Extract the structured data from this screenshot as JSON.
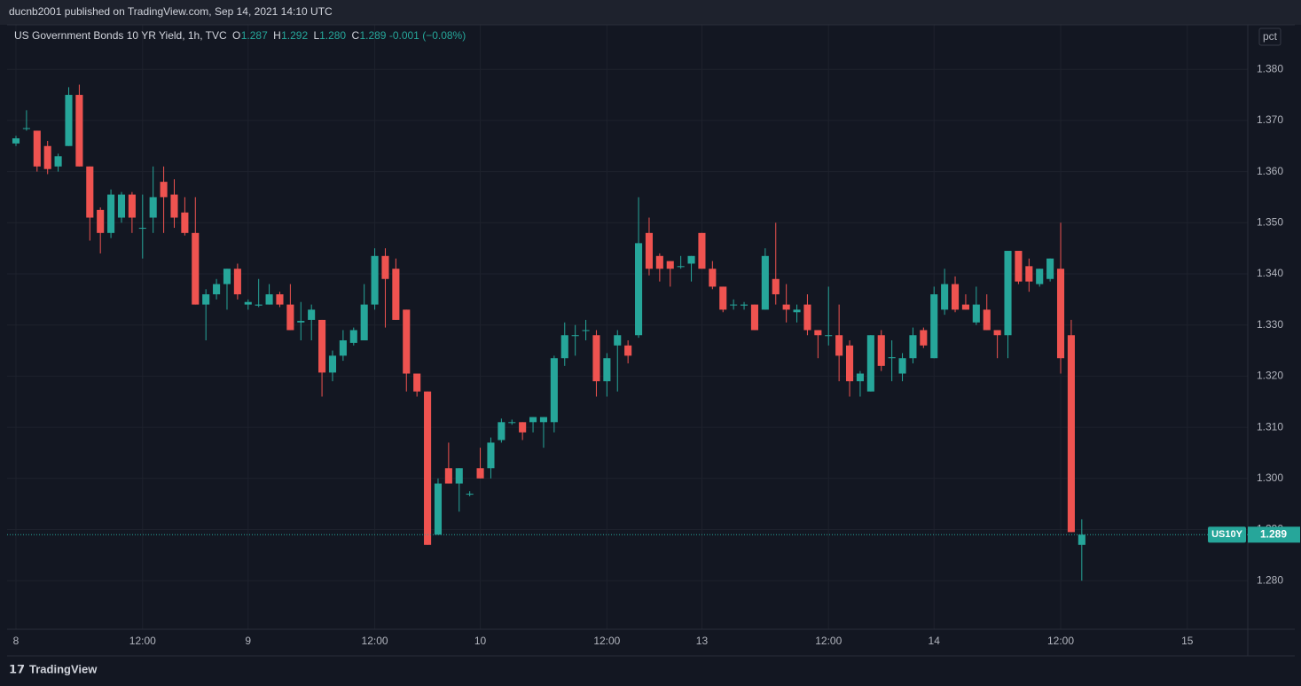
{
  "header": {
    "title": "ducnb2001 published on TradingView.com, Sep 14, 2021 14:10 UTC"
  },
  "chart_data": {
    "type": "candlestick",
    "legend_title": "US Government Bonds 10 YR Yield, 1h, TVC",
    "ohlc_legend": [
      {
        "key": "O",
        "value": "1.287"
      },
      {
        "key": "H",
        "value": "1.292"
      },
      {
        "key": "L",
        "value": "1.280"
      },
      {
        "key": "C",
        "value": "1.289"
      }
    ],
    "change": "-0.001 (−0.08%)",
    "scale_button": "pct",
    "symbol_tag": "US10Y",
    "up_color": "#26a69a",
    "down_color": "#ef5350",
    "open": [
      1.3655,
      1.3685,
      1.368,
      1.365,
      1.361,
      1.365,
      1.375,
      1.361,
      1.3525,
      1.348,
      1.351,
      1.3555,
      1.349,
      1.351,
      1.358,
      1.3555,
      1.352,
      1.348,
      1.334,
      1.336,
      1.338,
      1.341,
      1.334,
      1.3338,
      1.334,
      1.336,
      1.334,
      1.3305,
      1.331,
      1.331,
      1.3207,
      1.324,
      1.3265,
      1.327,
      1.334,
      1.3435,
      1.341,
      1.333,
      1.3205,
      1.317,
      1.289,
      1.302,
      1.299,
      1.297,
      1.302,
      1.302,
      1.3075,
      1.311,
      1.311,
      1.311,
      1.311,
      1.311,
      1.3235,
      1.328,
      1.329,
      1.328,
      1.319,
      1.326,
      1.326,
      1.328,
      1.348,
      1.3435,
      1.3425,
      1.3415,
      1.342,
      1.348,
      1.341,
      1.3375,
      1.334,
      1.3338,
      1.334,
      1.333,
      1.339,
      1.334,
      1.3325,
      1.334,
      1.329,
      1.328,
      1.328,
      1.326,
      1.319,
      1.317,
      1.328,
      1.3235,
      1.3205,
      1.3235,
      1.329,
      1.3235,
      1.333,
      1.338,
      1.334,
      1.3305,
      1.333,
      1.329,
      1.328,
      1.3445,
      1.3415,
      1.338,
      1.339,
      1.341,
      1.328,
      1.287
    ],
    "high": [
      1.367,
      1.372,
      1.368,
      1.366,
      1.3635,
      1.3765,
      1.377,
      1.361,
      1.353,
      1.3565,
      1.356,
      1.356,
      1.3555,
      1.361,
      1.361,
      1.3585,
      1.355,
      1.355,
      1.337,
      1.339,
      1.341,
      1.342,
      1.335,
      1.339,
      1.338,
      1.3365,
      1.338,
      1.3345,
      1.334,
      1.331,
      1.325,
      1.329,
      1.3295,
      1.338,
      1.345,
      1.345,
      1.343,
      1.333,
      1.3205,
      1.317,
      1.3,
      1.307,
      1.302,
      1.2975,
      1.306,
      1.308,
      1.3117,
      1.3115,
      1.311,
      1.312,
      1.312,
      1.324,
      1.3305,
      1.33,
      1.331,
      1.329,
      1.3245,
      1.329,
      1.327,
      1.355,
      1.351,
      1.344,
      1.3425,
      1.3435,
      1.3435,
      1.348,
      1.3425,
      1.3375,
      1.335,
      1.3345,
      1.334,
      1.345,
      1.35,
      1.338,
      1.334,
      1.336,
      1.329,
      1.3375,
      1.334,
      1.327,
      1.321,
      1.328,
      1.329,
      1.327,
      1.3245,
      1.3295,
      1.3295,
      1.3375,
      1.341,
      1.3395,
      1.336,
      1.3375,
      1.336,
      1.329,
      1.3445,
      1.3445,
      1.343,
      1.341,
      1.343,
      1.35,
      1.331,
      1.292
    ],
    "low": [
      1.365,
      1.368,
      1.36,
      1.3595,
      1.36,
      1.365,
      1.361,
      1.3465,
      1.344,
      1.347,
      1.35,
      1.348,
      1.343,
      1.348,
      1.348,
      1.349,
      1.3475,
      1.334,
      1.327,
      1.335,
      1.333,
      1.335,
      1.333,
      1.3335,
      1.334,
      1.3335,
      1.329,
      1.327,
      1.327,
      1.316,
      1.319,
      1.323,
      1.326,
      1.327,
      1.333,
      1.3295,
      1.331,
      1.317,
      1.316,
      1.287,
      1.289,
      1.299,
      1.2935,
      1.2965,
      1.3,
      1.3,
      1.307,
      1.3105,
      1.3075,
      1.309,
      1.306,
      1.309,
      1.322,
      1.324,
      1.327,
      1.316,
      1.316,
      1.317,
      1.3225,
      1.3275,
      1.3397,
      1.3385,
      1.3375,
      1.341,
      1.3385,
      1.341,
      1.337,
      1.3325,
      1.333,
      1.333,
      1.329,
      1.333,
      1.334,
      1.3305,
      1.3305,
      1.328,
      1.3235,
      1.326,
      1.319,
      1.316,
      1.316,
      1.317,
      1.321,
      1.319,
      1.319,
      1.3225,
      1.3255,
      1.3235,
      1.332,
      1.3325,
      1.333,
      1.33,
      1.329,
      1.3235,
      1.3235,
      1.338,
      1.3365,
      1.3375,
      1.3385,
      1.3205,
      1.2895,
      1.28
    ],
    "close": [
      1.3665,
      1.3685,
      1.361,
      1.3605,
      1.363,
      1.375,
      1.361,
      1.351,
      1.348,
      1.3555,
      1.3555,
      1.351,
      1.349,
      1.355,
      1.355,
      1.351,
      1.348,
      1.334,
      1.336,
      1.338,
      1.341,
      1.336,
      1.3345,
      1.334,
      1.336,
      1.334,
      1.329,
      1.3308,
      1.333,
      1.3207,
      1.324,
      1.327,
      1.329,
      1.334,
      1.3435,
      1.339,
      1.331,
      1.3205,
      1.317,
      1.287,
      1.299,
      1.299,
      1.302,
      1.297,
      1.3,
      1.307,
      1.311,
      1.311,
      1.309,
      1.312,
      1.312,
      1.3235,
      1.328,
      1.328,
      1.329,
      1.319,
      1.3235,
      1.328,
      1.324,
      1.346,
      1.341,
      1.341,
      1.341,
      1.3415,
      1.3435,
      1.341,
      1.3375,
      1.333,
      1.334,
      1.334,
      1.329,
      1.3435,
      1.336,
      1.333,
      1.333,
      1.329,
      1.328,
      1.328,
      1.324,
      1.319,
      1.3205,
      1.328,
      1.322,
      1.3237,
      1.3235,
      1.328,
      1.326,
      1.336,
      1.338,
      1.333,
      1.333,
      1.334,
      1.329,
      1.328,
      1.3445,
      1.3385,
      1.3385,
      1.341,
      1.343,
      1.3235,
      1.2895,
      1.289
    ],
    "xlim": [
      -0.84,
      116.73
    ],
    "xticks": [
      {
        "value": 0,
        "label": "8"
      },
      {
        "value": 12,
        "label": "12:00"
      },
      {
        "value": 22,
        "label": "9"
      },
      {
        "value": 34,
        "label": "12:00"
      },
      {
        "value": 44,
        "label": "10"
      },
      {
        "value": 56,
        "label": "12:00"
      },
      {
        "value": 65,
        "label": "13"
      },
      {
        "value": 77,
        "label": "12:00"
      },
      {
        "value": 87,
        "label": "14"
      },
      {
        "value": 99,
        "label": "12:00"
      },
      {
        "value": 111,
        "label": "15"
      }
    ],
    "ylim": [
      1.2705,
      1.3887
    ],
    "yticks": [
      {
        "value": 1.28,
        "label": "1.280"
      },
      {
        "value": 1.29,
        "label": "1.290"
      },
      {
        "value": 1.3,
        "label": "1.300"
      },
      {
        "value": 1.31,
        "label": "1.310"
      },
      {
        "value": 1.32,
        "label": "1.320"
      },
      {
        "value": 1.33,
        "label": "1.330"
      },
      {
        "value": 1.34,
        "label": "1.340"
      },
      {
        "value": 1.35,
        "label": "1.350"
      },
      {
        "value": 1.36,
        "label": "1.360"
      },
      {
        "value": 1.37,
        "label": "1.370"
      },
      {
        "value": 1.38,
        "label": "1.380"
      }
    ],
    "grid": true
  },
  "footer": {
    "brand": "TradingView"
  }
}
